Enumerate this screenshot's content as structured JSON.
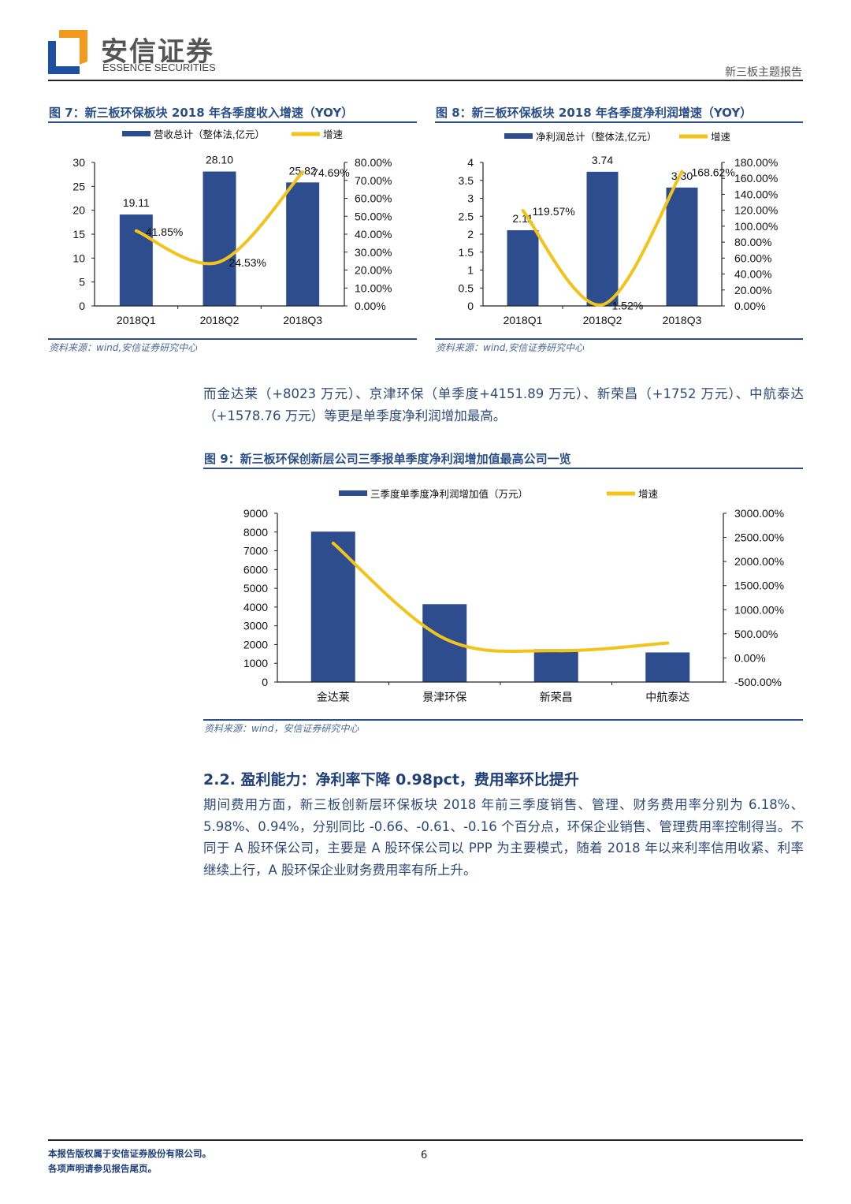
{
  "header": {
    "logo_cn": "安信证券",
    "logo_en": "ESSENCE SECURITIES",
    "doc_type": "新三板主题报告",
    "logo_colors": {
      "blue": "#1f4fa0",
      "orange": "#f39a1e"
    }
  },
  "figures": {
    "fig7": {
      "title": "图 7：新三板环保板块 2018 年各季度收入增速（YOY）",
      "source": "资料来源：wind,安信证券研究中心"
    },
    "fig8": {
      "title": "图 8：新三板环保板块 2018 年各季度净利润增速（YOY）",
      "source": "资料来源：wind,安信证券研究中心"
    },
    "fig9": {
      "title": "图 9：新三板环保创新层公司三季报单季度净利润增加值最高公司一览",
      "source": "资料来源：wind，安信证券研究中心"
    }
  },
  "chart_data": [
    {
      "type": "bar+line",
      "categories": [
        "2018Q1",
        "2018Q2",
        "2018Q3"
      ],
      "series": [
        {
          "name": "营收总计（整体法,亿元）",
          "kind": "bar",
          "axis": "left",
          "values": [
            19.11,
            28.1,
            25.82
          ],
          "labels": [
            "19.11",
            "28.10",
            "25.82"
          ]
        },
        {
          "name": "增速",
          "kind": "line",
          "axis": "right",
          "values": [
            41.85,
            24.53,
            74.69
          ],
          "labels": [
            "41.85%",
            "24.53%",
            "74.69%"
          ]
        }
      ],
      "left_axis": {
        "range": [
          0,
          30
        ],
        "ticks": [
          "0",
          "5",
          "10",
          "15",
          "20",
          "25",
          "30"
        ]
      },
      "right_axis": {
        "range": [
          0,
          80
        ],
        "ticks": [
          "0.00%",
          "10.00%",
          "20.00%",
          "30.00%",
          "40.00%",
          "50.00%",
          "60.00%",
          "70.00%",
          "80.00%"
        ]
      },
      "legend": "top",
      "grid": false,
      "colors": {
        "bar": "#2e4d8f",
        "line": "#f2c31a"
      }
    },
    {
      "type": "bar+line",
      "categories": [
        "2018Q1",
        "2018Q2",
        "2018Q3"
      ],
      "series": [
        {
          "name": "净利润总计（整体法,亿元）",
          "kind": "bar",
          "axis": "left",
          "values": [
            2.11,
            3.74,
            3.3
          ],
          "labels": [
            "2.11",
            "3.74",
            "3.30"
          ]
        },
        {
          "name": "增速",
          "kind": "line",
          "axis": "right",
          "values": [
            119.57,
            1.52,
            168.62
          ],
          "labels": [
            "119.57%",
            "1.52%",
            "168.62%"
          ]
        }
      ],
      "left_axis": {
        "range": [
          0,
          4
        ],
        "ticks": [
          "0",
          "0.5",
          "1",
          "1.5",
          "2",
          "2.5",
          "3",
          "3.5",
          "4"
        ]
      },
      "right_axis": {
        "range": [
          0,
          180
        ],
        "ticks": [
          "0.00%",
          "20.00%",
          "40.00%",
          "60.00%",
          "80.00%",
          "100.00%",
          "120.00%",
          "140.00%",
          "160.00%",
          "180.00%"
        ]
      },
      "legend": "top",
      "grid": false,
      "colors": {
        "bar": "#2e4d8f",
        "line": "#f2c31a"
      }
    },
    {
      "type": "bar+line",
      "categories": [
        "金达莱",
        "景津环保",
        "新荣昌",
        "中航泰达"
      ],
      "series": [
        {
          "name": "三季度单季度净利润增加值（万元）",
          "kind": "bar",
          "axis": "left",
          "values": [
            8023,
            4151.89,
            1752,
            1578.76
          ]
        },
        {
          "name": "增速",
          "kind": "line",
          "axis": "right",
          "values": [
            2380,
            400,
            150,
            310
          ]
        }
      ],
      "left_axis": {
        "range": [
          0,
          9000
        ],
        "ticks": [
          "0",
          "1000",
          "2000",
          "3000",
          "4000",
          "5000",
          "6000",
          "7000",
          "8000",
          "9000"
        ]
      },
      "right_axis": {
        "range": [
          -500,
          3000
        ],
        "ticks": [
          "-500.00%",
          "0.00%",
          "500.00%",
          "1000.00%",
          "1500.00%",
          "2000.00%",
          "2500.00%",
          "3000.00%"
        ]
      },
      "legend": "top",
      "grid": false,
      "colors": {
        "bar": "#2e4d8f",
        "line": "#f2c31a"
      }
    }
  ],
  "body": {
    "para1": "而金达莱（+8023 万元）、京津环保（单季度+4151.89 万元）、新荣昌（+1752 万元）、中航泰达（+1578.76 万元）等更是单季度净利润增加最高。",
    "section_heading": "2.2. 盈利能力：净利率下降 0.98pct，费用率环比提升",
    "para2": "期间费用方面，新三板创新层环保板块 2018 年前三季度销售、管理、财务费用率分别为 6.18%、5.98%、0.94%，分别同比 -0.66、-0.61、-0.16 个百分点，环保企业销售、管理费用率控制得当。不同于 A 股环保公司，主要是 A 股环保公司以 PPP 为主要模式，随着 2018 年以来利率信用收紧、利率继续上行，A 股环保企业财务费用率有所上升。"
  },
  "footer": {
    "copyright": "本报告版权属于安信证券股份有限公司。",
    "disclaimer": "各项声明请参见报告尾页。",
    "page_number": "6"
  }
}
